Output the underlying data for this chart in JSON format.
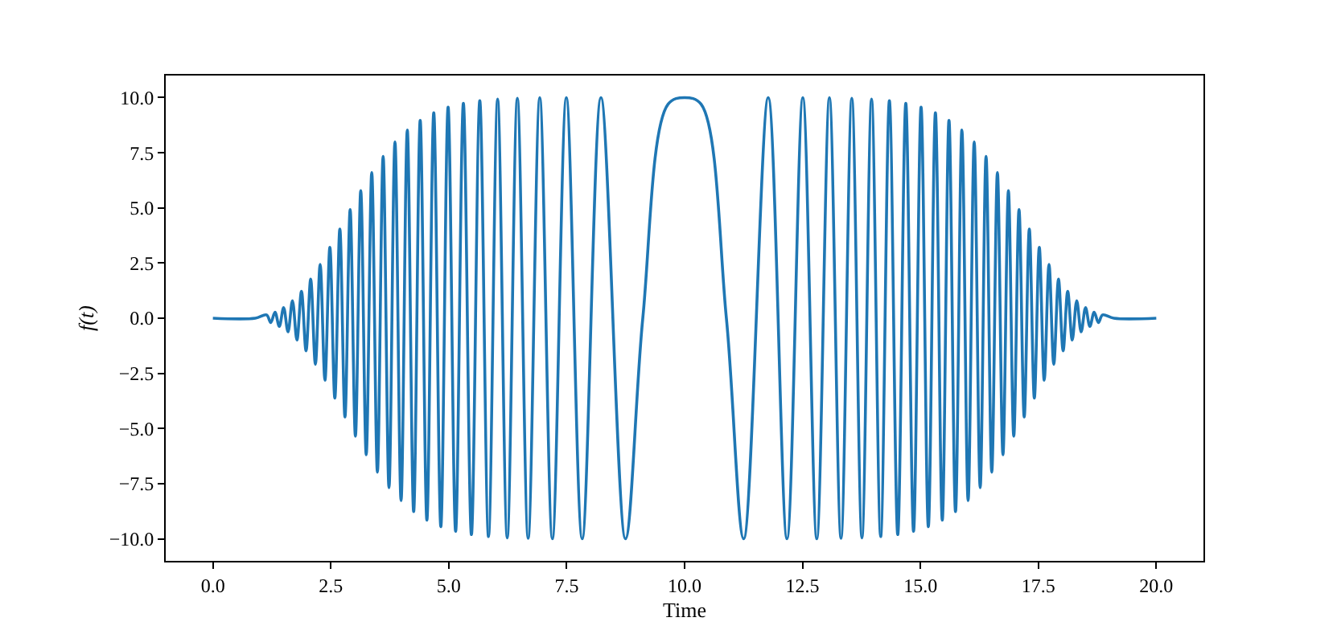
{
  "chart_data": {
    "type": "line",
    "xlabel": "Time",
    "ylabel": "f(t)",
    "marker": "none",
    "line_style": "solid",
    "xlim": [
      -1.0,
      21.0
    ],
    "ylim": [
      -11.0,
      11.0
    ],
    "xticks": [
      {
        "value": 0,
        "label": "0.0"
      },
      2.5,
      {
        "value": 5,
        "label": "5.0"
      },
      7.5,
      {
        "value": 10,
        "label": "10.0"
      },
      12.5,
      {
        "value": 15,
        "label": "15.0"
      },
      17.5,
      {
        "value": 20,
        "label": "20.0"
      }
    ],
    "yticks": [
      {
        "value": -10,
        "label": "−10.0"
      },
      {
        "value": -7.5,
        "label": "−7.5"
      },
      {
        "value": -5,
        "label": "−5.0"
      },
      {
        "value": -2.5,
        "label": "−2.5"
      },
      {
        "value": 0,
        "label": "0.0"
      },
      {
        "value": 2.5,
        "label": "2.5"
      },
      {
        "value": 5,
        "label": "5.0"
      },
      {
        "value": 7.5,
        "label": "7.5"
      },
      {
        "value": 10,
        "label": "10.0"
      }
    ],
    "series": [
      {
        "color": "#1f77b4",
        "x": [
          0.0,
          0.9,
          1.1377,
          1.2264,
          1.3166,
          1.4076,
          1.4996,
          1.5926,
          1.6866,
          1.7817,
          1.8777,
          1.975,
          2.0733,
          2.173,
          2.274,
          2.376,
          2.4801,
          2.585,
          2.6916,
          2.8,
          2.91,
          3.0215,
          3.135,
          3.2505,
          3.3679,
          3.4875,
          3.6092,
          3.7334,
          3.86,
          3.9893,
          4.1215,
          4.2566,
          4.395,
          4.5369,
          4.6826,
          4.8324,
          4.9867,
          5.1459,
          5.3105,
          5.4811,
          5.6584,
          5.8432,
          6.0367,
          6.2401,
          6.4551,
          6.6841,
          6.93,
          7.1975,
          7.4934,
          7.8292,
          8.2275,
          8.7467,
          9.114,
          9.65,
          10.0,
          10.35,
          10.886,
          11.2533,
          11.7725,
          12.1708,
          12.5066,
          12.8025,
          13.07,
          13.3159,
          13.5449,
          13.7599,
          13.9633,
          14.1568,
          14.3416,
          14.5189,
          14.6895,
          14.8541,
          15.0133,
          15.1676,
          15.3174,
          15.4631,
          15.605,
          15.7434,
          15.8785,
          16.0107,
          16.14,
          16.2666,
          16.3908,
          16.5125,
          16.6321,
          16.7495,
          16.865,
          16.9785,
          17.09,
          17.2,
          17.3084,
          17.415,
          17.5199,
          17.624,
          17.726,
          17.827,
          17.9267,
          18.025,
          18.1223,
          18.2183,
          18.3134,
          18.4074,
          18.5004,
          18.5924,
          18.6834,
          18.7736,
          18.8623,
          19.1,
          20.0
        ],
        "values": [
          0,
          0,
          0.15,
          -0.2,
          0.27,
          -0.37,
          0.48,
          -0.62,
          0.79,
          -0.99,
          1.22,
          -1.48,
          1.77,
          -2.09,
          2.44,
          -2.81,
          3.21,
          -3.62,
          4.04,
          -4.48,
          4.92,
          -5.35,
          5.78,
          -6.19,
          6.6,
          -6.98,
          7.34,
          -7.68,
          7.99,
          -8.27,
          8.53,
          -8.77,
          8.97,
          -9.15,
          9.31,
          -9.45,
          9.57,
          -9.66,
          9.74,
          -9.81,
          9.86,
          -9.9,
          9.93,
          -9.96,
          9.97,
          -9.98,
          10,
          -10,
          10,
          -10,
          10,
          -10,
          0,
          9.7,
          10,
          9.7,
          0,
          -10,
          10,
          -10,
          10,
          -10,
          10,
          -9.98,
          9.97,
          -9.96,
          9.93,
          -9.9,
          9.86,
          -9.81,
          9.74,
          -9.66,
          9.57,
          -9.45,
          9.31,
          -9.15,
          8.97,
          -8.77,
          8.53,
          -8.27,
          7.99,
          -7.68,
          7.34,
          -6.98,
          6.6,
          -6.19,
          5.78,
          -5.35,
          4.92,
          -4.48,
          4.04,
          -3.62,
          3.21,
          -2.81,
          2.44,
          -2.09,
          1.77,
          -1.48,
          1.22,
          -0.99,
          0.79,
          -0.62,
          0.48,
          -0.37,
          0.27,
          -0.2,
          0.15,
          0,
          0
        ]
      }
    ]
  }
}
